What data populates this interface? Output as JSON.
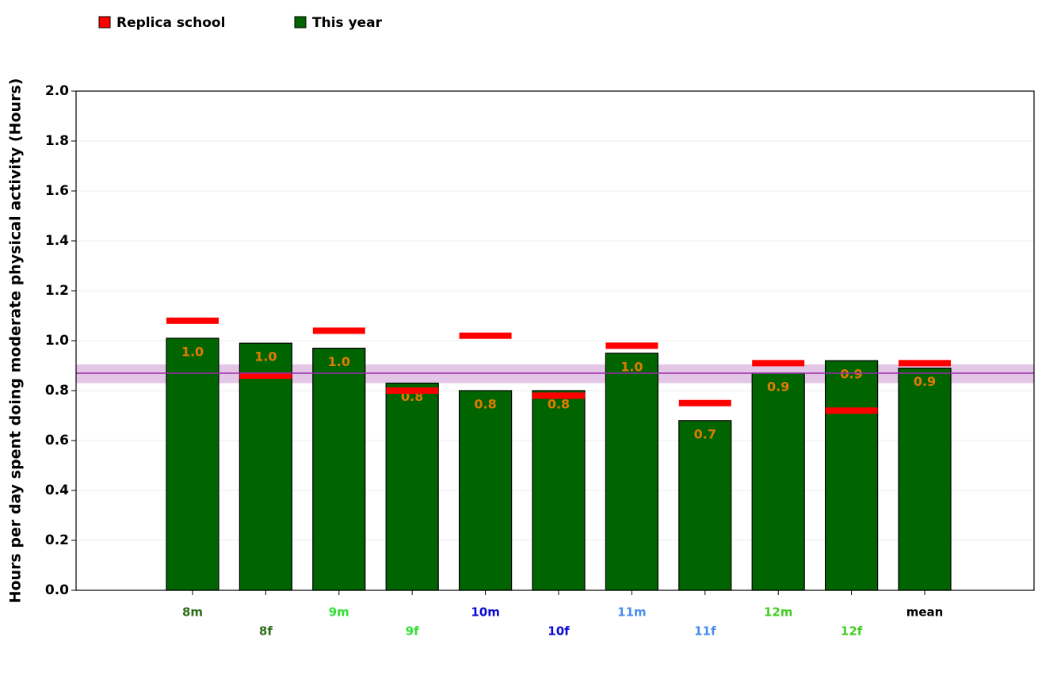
{
  "chart_data": {
    "type": "bar",
    "y_label": "Hours per day spent doing moderate physical activity (Hours)",
    "categories": [
      "8m",
      "8f",
      "9m",
      "9f",
      "10m",
      "10f",
      "11m",
      "11f",
      "12m",
      "12f",
      "mean"
    ],
    "category_colors": [
      "#2d6e1a",
      "#2d6e1a",
      "#33e033",
      "#33e033",
      "#0a0ad0",
      "#0a0ad0",
      "#4a8cf0",
      "#4a8cf0",
      "#44cc22",
      "#44cc22",
      "#000000"
    ],
    "series": [
      {
        "name": "Replica school",
        "color": "#ff0000",
        "values": [
          1.08,
          0.86,
          1.04,
          0.8,
          1.02,
          0.78,
          0.98,
          0.75,
          0.91,
          0.72,
          0.91
        ]
      },
      {
        "name": "This year",
        "color": "#006400",
        "values": [
          1.01,
          0.99,
          0.97,
          0.83,
          0.8,
          0.8,
          0.95,
          0.68,
          0.87,
          0.92,
          0.89
        ],
        "value_labels": [
          "1.0",
          "1.0",
          "1.0",
          "0.8",
          "0.8",
          "0.8",
          "1.0",
          "0.7",
          "0.9",
          "0.9",
          "0.9"
        ]
      }
    ],
    "reference_line": 0.87,
    "reference_band": [
      0.83,
      0.905
    ],
    "value_label_color": "#e07b00",
    "ylim": [
      0,
      2
    ],
    "yticks": [
      {
        "value": 0,
        "label": "0.0"
      },
      0.2,
      0.4,
      0.6,
      0.8,
      {
        "value": 1,
        "label": "1.0"
      },
      1.2,
      1.4,
      1.6,
      1.8,
      {
        "value": 2,
        "label": "2.0"
      }
    ],
    "grid": true
  }
}
